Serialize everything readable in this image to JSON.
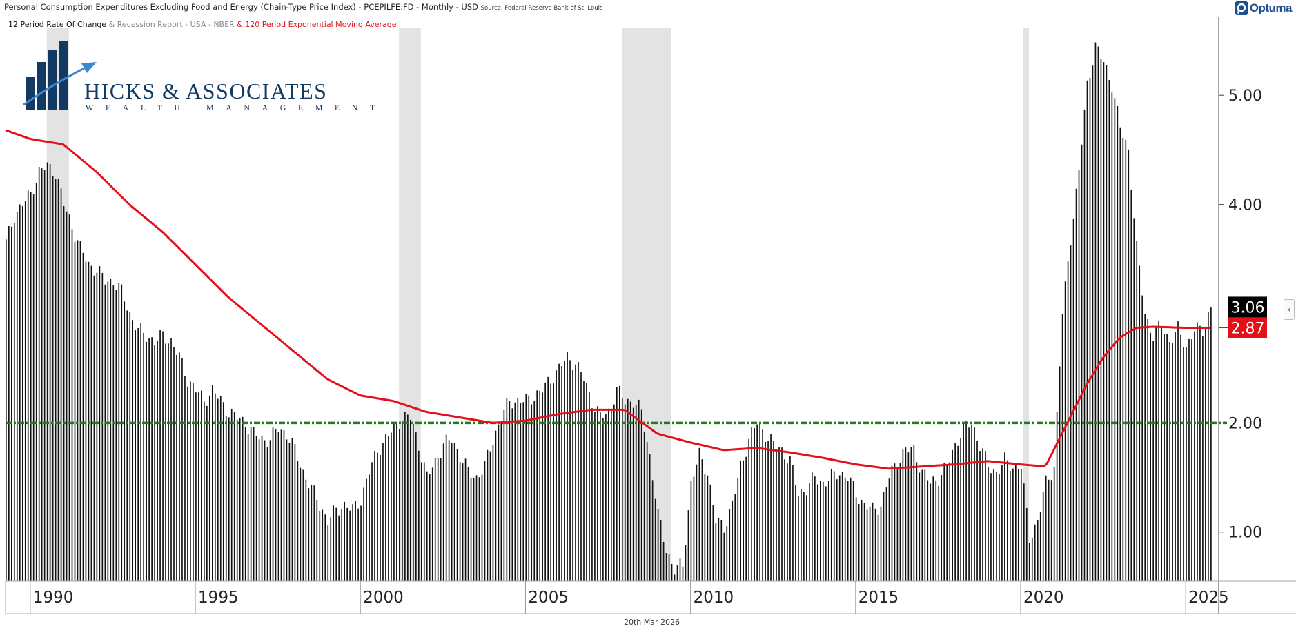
{
  "header": {
    "title": "Personal Consumption Expenditures Excluding Food and Energy (Chain-Type Price Index) - PCEPILFE:FD - Monthly - USD",
    "source": "Source: Federal Reserve Bank of St. Louis",
    "legend_main": "12 Period Rate Of Change",
    "legend_recession": "& Recession Report - USA - NBER",
    "legend_ema": "& 120 Period Exponential Moving Average",
    "brand": "Optuma"
  },
  "logo": {
    "name": "HICKS & ASSOCIATES",
    "tagline": "WEALTH MANAGEMENT"
  },
  "footer": {
    "date": "20th Mar 2026"
  },
  "colors": {
    "bars": "#111111",
    "ema": "#e3101a",
    "target": "#1e7d14",
    "recession": "#e3e3e3",
    "logo_navy": "#123a63",
    "logo_blue": "#3f86d0",
    "brand_blue": "#1d4f91"
  },
  "icons": {
    "brand": "optuma-logo-icon",
    "collapse": "chevron-left-icon"
  },
  "chart_data": {
    "type": "bar",
    "y_axis_side": "right",
    "ylim": [
      0.55,
      5.62
    ],
    "xlim": [
      1989.25,
      2026.0
    ],
    "y_ticks": [
      {
        "value": 1.0,
        "label": "1.00"
      },
      {
        "value": 2.0,
        "label": "2.00"
      },
      {
        "value": 4.0,
        "label": "4.00"
      },
      {
        "value": 5.0,
        "label": "5.00"
      }
    ],
    "x_ticks": [
      {
        "value": 1990,
        "label": "1990"
      },
      {
        "value": 1995,
        "label": "1995"
      },
      {
        "value": 2000,
        "label": "2000"
      },
      {
        "value": 2005,
        "label": "2005"
      },
      {
        "value": 2010,
        "label": "2010"
      },
      {
        "value": 2015,
        "label": "2015"
      },
      {
        "value": 2020,
        "label": "2020"
      },
      {
        "value": 2025,
        "label": "2025"
      }
    ],
    "recessions": [
      [
        1990.5,
        1991.17
      ],
      [
        2001.17,
        2001.83
      ],
      [
        2007.92,
        2009.42
      ],
      [
        2020.08,
        2020.25
      ]
    ],
    "reference_line": {
      "value": 2.0
    },
    "series": [
      {
        "name": "12 Period Rate Of Change",
        "kind": "bar",
        "anchors": [
          [
            1989.25,
            3.65
          ],
          [
            1989.5,
            3.9
          ],
          [
            1989.75,
            4.0
          ],
          [
            1990.0,
            4.1
          ],
          [
            1990.25,
            4.3
          ],
          [
            1990.5,
            4.35
          ],
          [
            1990.75,
            4.3
          ],
          [
            1991.0,
            4.0
          ],
          [
            1991.25,
            3.8
          ],
          [
            1991.5,
            3.6
          ],
          [
            1991.75,
            3.45
          ],
          [
            1992.0,
            3.4
          ],
          [
            1992.25,
            3.3
          ],
          [
            1992.5,
            3.3
          ],
          [
            1992.75,
            3.2
          ],
          [
            1993.0,
            3.0
          ],
          [
            1993.25,
            2.85
          ],
          [
            1993.5,
            2.8
          ],
          [
            1993.75,
            2.75
          ],
          [
            1994.0,
            2.8
          ],
          [
            1994.25,
            2.75
          ],
          [
            1994.5,
            2.6
          ],
          [
            1994.75,
            2.4
          ],
          [
            1995.0,
            2.3
          ],
          [
            1995.25,
            2.2
          ],
          [
            1995.5,
            2.3
          ],
          [
            1995.75,
            2.2
          ],
          [
            1996.0,
            2.1
          ],
          [
            1996.25,
            2.05
          ],
          [
            1996.5,
            2.0
          ],
          [
            1996.75,
            1.9
          ],
          [
            1997.0,
            1.85
          ],
          [
            1997.25,
            1.85
          ],
          [
            1997.5,
            1.95
          ],
          [
            1997.75,
            1.9
          ],
          [
            1998.0,
            1.75
          ],
          [
            1998.25,
            1.55
          ],
          [
            1998.5,
            1.4
          ],
          [
            1998.75,
            1.25
          ],
          [
            1999.0,
            1.1
          ],
          [
            1999.25,
            1.2
          ],
          [
            1999.5,
            1.25
          ],
          [
            1999.75,
            1.2
          ],
          [
            2000.0,
            1.3
          ],
          [
            2000.25,
            1.55
          ],
          [
            2000.5,
            1.75
          ],
          [
            2000.75,
            1.85
          ],
          [
            2001.0,
            1.95
          ],
          [
            2001.25,
            2.05
          ],
          [
            2001.5,
            2.05
          ],
          [
            2001.75,
            1.8
          ],
          [
            2002.0,
            1.5
          ],
          [
            2002.25,
            1.65
          ],
          [
            2002.5,
            1.8
          ],
          [
            2002.75,
            1.85
          ],
          [
            2003.0,
            1.7
          ],
          [
            2003.25,
            1.55
          ],
          [
            2003.5,
            1.5
          ],
          [
            2003.75,
            1.6
          ],
          [
            2004.0,
            1.85
          ],
          [
            2004.25,
            2.05
          ],
          [
            2004.5,
            2.2
          ],
          [
            2004.75,
            2.2
          ],
          [
            2005.0,
            2.2
          ],
          [
            2005.25,
            2.25
          ],
          [
            2005.5,
            2.3
          ],
          [
            2005.75,
            2.4
          ],
          [
            2006.0,
            2.5
          ],
          [
            2006.25,
            2.6
          ],
          [
            2006.5,
            2.55
          ],
          [
            2006.75,
            2.4
          ],
          [
            2007.0,
            2.2
          ],
          [
            2007.25,
            2.05
          ],
          [
            2007.5,
            2.1
          ],
          [
            2007.75,
            2.3
          ],
          [
            2008.0,
            2.2
          ],
          [
            2008.25,
            2.2
          ],
          [
            2008.5,
            2.1
          ],
          [
            2008.75,
            1.7
          ],
          [
            2009.0,
            1.15
          ],
          [
            2009.25,
            0.85
          ],
          [
            2009.5,
            0.65
          ],
          [
            2009.75,
            0.7
          ],
          [
            2010.0,
            1.45
          ],
          [
            2010.25,
            1.7
          ],
          [
            2010.5,
            1.55
          ],
          [
            2010.75,
            1.1
          ],
          [
            2011.0,
            1.05
          ],
          [
            2011.25,
            1.25
          ],
          [
            2011.5,
            1.6
          ],
          [
            2011.75,
            1.85
          ],
          [
            2012.0,
            2.0
          ],
          [
            2012.25,
            1.9
          ],
          [
            2012.5,
            1.8
          ],
          [
            2012.75,
            1.75
          ],
          [
            2013.0,
            1.65
          ],
          [
            2013.25,
            1.35
          ],
          [
            2013.5,
            1.4
          ],
          [
            2013.75,
            1.5
          ],
          [
            2014.0,
            1.45
          ],
          [
            2014.25,
            1.5
          ],
          [
            2014.5,
            1.55
          ],
          [
            2014.75,
            1.5
          ],
          [
            2015.0,
            1.35
          ],
          [
            2015.25,
            1.25
          ],
          [
            2015.5,
            1.2
          ],
          [
            2015.75,
            1.25
          ],
          [
            2016.0,
            1.5
          ],
          [
            2016.25,
            1.65
          ],
          [
            2016.5,
            1.75
          ],
          [
            2016.75,
            1.75
          ],
          [
            2017.0,
            1.55
          ],
          [
            2017.25,
            1.45
          ],
          [
            2017.5,
            1.5
          ],
          [
            2017.75,
            1.6
          ],
          [
            2018.0,
            1.8
          ],
          [
            2018.25,
            1.95
          ],
          [
            2018.5,
            2.0
          ],
          [
            2018.75,
            1.8
          ],
          [
            2019.0,
            1.6
          ],
          [
            2019.25,
            1.55
          ],
          [
            2019.5,
            1.65
          ],
          [
            2019.75,
            1.6
          ],
          [
            2020.0,
            1.6
          ],
          [
            2020.25,
            0.95
          ],
          [
            2020.5,
            1.1
          ],
          [
            2020.75,
            1.45
          ],
          [
            2021.0,
            1.6
          ],
          [
            2021.25,
            3.0
          ],
          [
            2021.5,
            3.7
          ],
          [
            2021.75,
            4.3
          ],
          [
            2022.0,
            5.1
          ],
          [
            2022.25,
            5.45
          ],
          [
            2022.5,
            5.3
          ],
          [
            2022.75,
            5.1
          ],
          [
            2023.0,
            4.7
          ],
          [
            2023.25,
            4.5
          ],
          [
            2023.5,
            3.6
          ],
          [
            2023.75,
            3.0
          ],
          [
            2024.0,
            2.8
          ],
          [
            2024.25,
            2.9
          ],
          [
            2024.5,
            2.75
          ],
          [
            2024.75,
            2.85
          ],
          [
            2025.0,
            2.7
          ],
          [
            2025.25,
            2.85
          ],
          [
            2025.5,
            2.85
          ],
          [
            2025.75,
            3.06
          ]
        ]
      },
      {
        "name": "120 Period Exponential Moving Average",
        "kind": "line",
        "anchors": [
          [
            1989.25,
            4.68
          ],
          [
            1990.0,
            4.6
          ],
          [
            1991.0,
            4.55
          ],
          [
            1992.0,
            4.3
          ],
          [
            1993.0,
            4.0
          ],
          [
            1994.0,
            3.75
          ],
          [
            1995.0,
            3.45
          ],
          [
            1996.0,
            3.15
          ],
          [
            1997.0,
            2.9
          ],
          [
            1998.0,
            2.65
          ],
          [
            1999.0,
            2.4
          ],
          [
            2000.0,
            2.25
          ],
          [
            2001.0,
            2.2
          ],
          [
            2002.0,
            2.1
          ],
          [
            2003.0,
            2.05
          ],
          [
            2004.0,
            2.0
          ],
          [
            2005.0,
            2.02
          ],
          [
            2006.0,
            2.08
          ],
          [
            2007.0,
            2.12
          ],
          [
            2008.0,
            2.12
          ],
          [
            2009.0,
            1.9
          ],
          [
            2010.0,
            1.82
          ],
          [
            2011.0,
            1.75
          ],
          [
            2012.0,
            1.77
          ],
          [
            2013.0,
            1.73
          ],
          [
            2014.0,
            1.68
          ],
          [
            2015.0,
            1.62
          ],
          [
            2016.0,
            1.58
          ],
          [
            2017.0,
            1.6
          ],
          [
            2018.0,
            1.62
          ],
          [
            2019.0,
            1.65
          ],
          [
            2020.0,
            1.62
          ],
          [
            2020.75,
            1.6
          ],
          [
            2021.0,
            1.75
          ],
          [
            2021.5,
            2.05
          ],
          [
            2022.0,
            2.35
          ],
          [
            2022.5,
            2.6
          ],
          [
            2023.0,
            2.78
          ],
          [
            2023.5,
            2.87
          ],
          [
            2024.0,
            2.88
          ],
          [
            2025.0,
            2.87
          ],
          [
            2025.75,
            2.87
          ]
        ]
      }
    ],
    "last_values": [
      {
        "value": 3.06,
        "label": "3.06",
        "series": "bars"
      },
      {
        "value": 2.87,
        "label": "2.87",
        "series": "ema"
      }
    ]
  }
}
